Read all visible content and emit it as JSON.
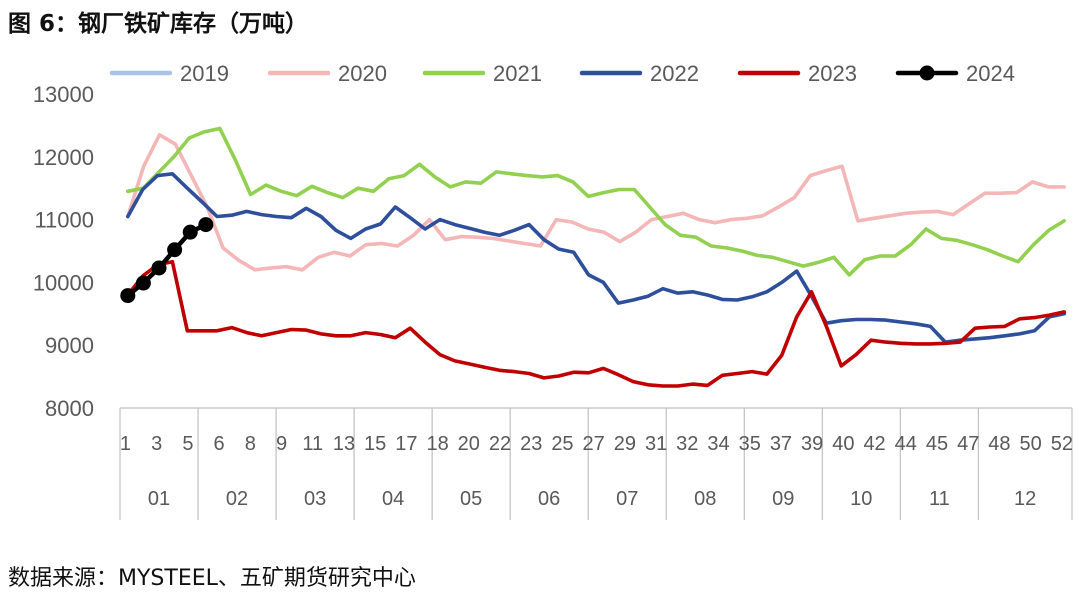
{
  "title": "图 6：钢厂铁矿库存（万吨）",
  "source": "数据来源：MYSTEEL、五矿期货研究中心",
  "chart_data": {
    "type": "line",
    "title": "图 6：钢厂铁矿库存（万吨）",
    "ylim": [
      8000,
      13000
    ],
    "yticks": [
      "8000",
      "9000",
      "10000",
      "11000",
      "12000",
      "13000"
    ],
    "x_week_labels": [
      "1",
      "3",
      "5",
      "6",
      "8",
      "9",
      "11",
      "13",
      "15",
      "17",
      "18",
      "20",
      "22",
      "23",
      "25",
      "27",
      "29",
      "31",
      "32",
      "34",
      "35",
      "37",
      "39",
      "40",
      "42",
      "44",
      "45",
      "47",
      "48",
      "50",
      "52"
    ],
    "x_month_labels": [
      "01",
      "02",
      "03",
      "04",
      "05",
      "06",
      "07",
      "08",
      "09",
      "10",
      "11",
      "12"
    ],
    "legend_position": "top",
    "gridlines": false,
    "series": [
      {
        "name": "2019",
        "color": "#a9c4e8",
        "marker": false,
        "values": []
      },
      {
        "name": "2020",
        "color": "#f4b6b6",
        "marker": false,
        "values": [
          11050,
          11850,
          12350,
          12200,
          11700,
          11200,
          10550,
          10350,
          10200,
          10230,
          10250,
          10200,
          10400,
          10480,
          10420,
          10600,
          10620,
          10580,
          10750,
          11000,
          10680,
          10730,
          10720,
          10700,
          10660,
          10620,
          10580,
          11000,
          10960,
          10850,
          10800,
          10650,
          10800,
          11000,
          11050,
          11100,
          11000,
          10950,
          11000,
          11020,
          11060,
          11200,
          11350,
          11700,
          11780,
          11850,
          10980,
          11020,
          11060,
          11100,
          11120,
          11130,
          11080,
          11250,
          11420,
          11420,
          11430,
          11600,
          11520,
          11520
        ]
      },
      {
        "name": "2021",
        "color": "#92d050",
        "marker": false,
        "values": [
          11450,
          11500,
          11750,
          12000,
          12300,
          12400,
          12450,
          11950,
          11400,
          11550,
          11450,
          11380,
          11530,
          11430,
          11350,
          11500,
          11450,
          11650,
          11700,
          11880,
          11680,
          11520,
          11600,
          11580,
          11760,
          11730,
          11700,
          11680,
          11700,
          11600,
          11370,
          11430,
          11480,
          11480,
          11200,
          10920,
          10750,
          10720,
          10580,
          10550,
          10500,
          10430,
          10400,
          10330,
          10260,
          10320,
          10400,
          10120,
          10360,
          10420,
          10420,
          10600,
          10850,
          10700,
          10670,
          10600,
          10520,
          10420,
          10330,
          10600,
          10830,
          10980
        ]
      },
      {
        "name": "2022",
        "color": "#2e4f9c",
        "marker": false,
        "values": [
          11050,
          11480,
          11700,
          11730,
          11500,
          11280,
          11050,
          11070,
          11130,
          11080,
          11050,
          11030,
          11180,
          11050,
          10830,
          10700,
          10850,
          10930,
          11200,
          11030,
          10850,
          11000,
          10920,
          10860,
          10800,
          10750,
          10830,
          10920,
          10680,
          10530,
          10480,
          10120,
          10000,
          9670,
          9720,
          9780,
          9900,
          9830,
          9850,
          9800,
          9730,
          9720,
          9770,
          9850,
          10000,
          10180,
          9780,
          9350,
          9390,
          9410,
          9410,
          9400,
          9370,
          9340,
          9300,
          9050,
          9080,
          9100,
          9120,
          9150,
          9180,
          9230,
          9450,
          9500
        ]
      },
      {
        "name": "2023",
        "color": "#c00000",
        "marker": false,
        "values": [
          9800,
          10100,
          10280,
          10330,
          9230,
          9230,
          9230,
          9280,
          9200,
          9150,
          9200,
          9250,
          9240,
          9180,
          9150,
          9150,
          9200,
          9170,
          9120,
          9270,
          9050,
          8850,
          8750,
          8700,
          8650,
          8600,
          8580,
          8550,
          8480,
          8510,
          8570,
          8560,
          8630,
          8530,
          8420,
          8370,
          8350,
          8350,
          8380,
          8360,
          8520,
          8550,
          8580,
          8540,
          8840,
          9450,
          9850,
          9300,
          8670,
          8850,
          9080,
          9050,
          9030,
          9020,
          9020,
          9030,
          9050,
          9270,
          9290,
          9300,
          9420,
          9440,
          9480,
          9530
        ]
      },
      {
        "name": "2024",
        "color": "#000000",
        "marker": true,
        "values": [
          9790,
          9990,
          10230,
          10520,
          10800,
          10920
        ]
      }
    ]
  }
}
